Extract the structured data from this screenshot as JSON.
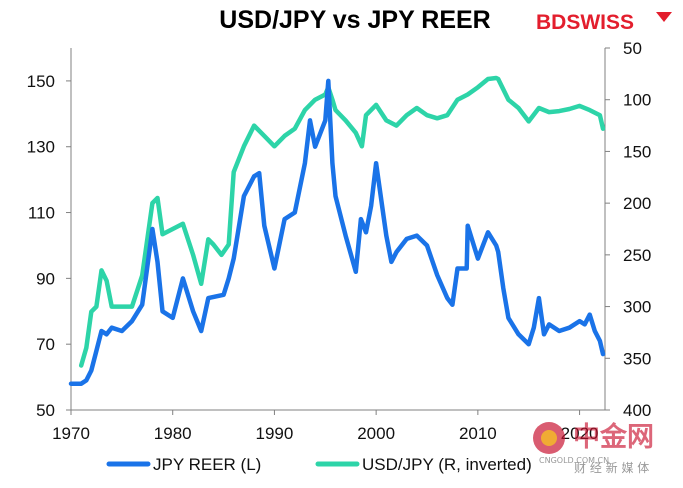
{
  "brand": {
    "logo_text": "BDSWISS",
    "color": "#e31e2d"
  },
  "watermark": {
    "text": "中金网",
    "url": "CNGOLD.COM.CN",
    "subtitle": "财 经 新 媒 体",
    "color": "#c8102e"
  },
  "chart_data": {
    "type": "line",
    "title": "USD/JPY vs JPY REER",
    "x_axis": {
      "range": [
        1970,
        2022.5
      ],
      "ticks": [
        "1970",
        "1980",
        "1990",
        "2000",
        "2010",
        "2020"
      ]
    },
    "y_left": {
      "range": [
        50,
        160
      ],
      "ticks": [
        "50",
        "70",
        "90",
        "110",
        "130",
        "150"
      ]
    },
    "y_right": {
      "range": [
        50,
        400
      ],
      "inverted": true,
      "ticks": [
        "50",
        "100",
        "150",
        "200",
        "250",
        "300",
        "350",
        "400"
      ]
    },
    "legend_position": "bottom",
    "grid": false,
    "series": [
      {
        "name": "JPY REER (L)",
        "axis": "left",
        "color": "#1a73e8",
        "x": [
          1970,
          1971,
          1971.5,
          1972,
          1972.5,
          1973,
          1973.5,
          1974,
          1975,
          1976,
          1977,
          1978,
          1978.5,
          1979,
          1980,
          1981,
          1982,
          1982.8,
          1983.5,
          1985,
          1985.5,
          1986,
          1987,
          1988,
          1988.5,
          1989,
          1990,
          1991,
          1992,
          1993,
          1993.5,
          1994,
          1995,
          1995.3,
          1995.7,
          1996,
          1997,
          1998,
          1998.5,
          1999,
          1999.5,
          2000,
          2001,
          2001.5,
          2002,
          2003,
          2004,
          2005,
          2006,
          2007,
          2007.5,
          2008,
          2008.9,
          2009,
          2010,
          2011,
          2011.8,
          2012,
          2012.5,
          2013,
          2014,
          2015,
          2015.5,
          2016,
          2016.5,
          2017,
          2018,
          2019,
          2020,
          2020.5,
          2021,
          2021.5,
          2022,
          2022.3
        ],
        "values": [
          58,
          58,
          59,
          62,
          68,
          74,
          73,
          75,
          74,
          77,
          82,
          105,
          95,
          80,
          78,
          90,
          80,
          74,
          84,
          85,
          90,
          96,
          115,
          121,
          122,
          106,
          93,
          108,
          110,
          125,
          138,
          130,
          138,
          150,
          125,
          115,
          103,
          92,
          108,
          104,
          112,
          125,
          103,
          95,
          98,
          102,
          103,
          100,
          91,
          84,
          82,
          93,
          93,
          106,
          96,
          104,
          100,
          98,
          87,
          78,
          73,
          70,
          75,
          84,
          73,
          76,
          74,
          75,
          77,
          76,
          79,
          74,
          71,
          67
        ]
      },
      {
        "name": "USD/JPY (R, inverted)",
        "axis": "right",
        "color": "#2dd4a8",
        "x": [
          1971,
          1971.5,
          1972,
          1972.5,
          1973,
          1973.5,
          1974,
          1975,
          1976,
          1977,
          1978,
          1978.5,
          1979,
          1980,
          1981,
          1982,
          1982.8,
          1983.5,
          1984,
          1984.8,
          1985.5,
          1986,
          1987,
          1988,
          1989,
          1990,
          1991,
          1992,
          1993,
          1994,
          1995,
          1995.3,
          1995.7,
          1996,
          1997,
          1998,
          1998.6,
          1999,
          2000,
          2001,
          2002,
          2003,
          2004,
          2005,
          2006,
          2007,
          2008,
          2009,
          2010,
          2011,
          2011.8,
          2012,
          2012.5,
          2013,
          2014,
          2015,
          2016,
          2017,
          2018,
          2019,
          2020,
          2021,
          2022,
          2022.3
        ],
        "values": [
          357,
          340,
          305,
          300,
          265,
          275,
          300,
          300,
          300,
          270,
          200,
          195,
          230,
          225,
          220,
          250,
          278,
          235,
          240,
          250,
          240,
          170,
          145,
          125,
          135,
          145,
          135,
          128,
          110,
          100,
          95,
          88,
          100,
          110,
          120,
          132,
          145,
          115,
          105,
          120,
          125,
          115,
          108,
          115,
          118,
          115,
          100,
          95,
          88,
          80,
          79,
          80,
          90,
          100,
          108,
          121,
          108,
          112,
          111,
          109,
          106,
          110,
          115,
          128
        ]
      }
    ]
  }
}
